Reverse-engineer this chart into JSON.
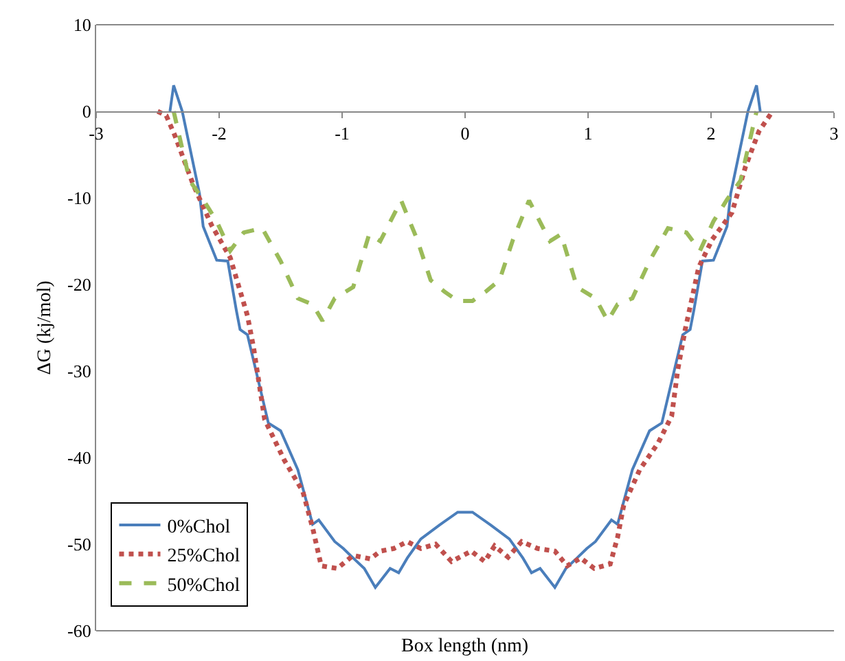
{
  "chart_data": {
    "type": "line",
    "xlabel": "Box length (nm)",
    "ylabel": "ΔG (kj/mol)",
    "xlim": [
      -3,
      3
    ],
    "ylim": [
      -60,
      10
    ],
    "xticks": [
      -3,
      -2,
      -1,
      0,
      1,
      2,
      3
    ],
    "yticks": [
      -60,
      -50,
      -40,
      -30,
      -20,
      -10,
      0,
      10
    ],
    "grid": false,
    "legend": "bottom left",
    "marker": "none",
    "series": [
      {
        "name": "0%Chol",
        "color": "#4a7ebb",
        "line_style": "solid",
        "x": [
          -2.4,
          -2.37,
          -2.3,
          -2.16,
          -2.13,
          -2.02,
          -1.93,
          -1.86,
          -1.83,
          -1.77,
          -1.6,
          -1.5,
          -1.36,
          -1.24,
          -1.19,
          -1.06,
          -0.99,
          -0.91,
          -0.82,
          -0.73,
          -0.61,
          -0.54,
          -0.47,
          -0.36,
          -0.21,
          -0.06,
          0.06,
          0.21,
          0.36,
          0.47,
          0.54,
          0.61,
          0.73,
          0.82,
          0.91,
          0.99,
          1.06,
          1.19,
          1.24,
          1.36,
          1.5,
          1.6,
          1.77,
          1.83,
          1.86,
          1.93,
          2.02,
          2.13,
          2.16,
          2.3,
          2.37,
          2.4
        ],
        "values": [
          0,
          3,
          0,
          -9.5,
          -13.3,
          -17.2,
          -17.3,
          -23,
          -25.2,
          -25.8,
          -36,
          -36.9,
          -41.4,
          -47.7,
          -47.2,
          -49.7,
          -50.5,
          -51.6,
          -52.8,
          -55,
          -52.8,
          -53.3,
          -51.6,
          -49.4,
          -47.8,
          -46.3,
          -46.3,
          -47.8,
          -49.4,
          -51.6,
          -53.3,
          -52.8,
          -55,
          -52.8,
          -51.6,
          -50.5,
          -49.7,
          -47.2,
          -47.7,
          -41.4,
          -36.9,
          -36,
          -25.8,
          -25.2,
          -23,
          -17.3,
          -17.2,
          -13.3,
          -9.5,
          0,
          3,
          0
        ]
      },
      {
        "name": "25%Chol",
        "color": "#c0504d",
        "line_style": "dotted",
        "x": [
          -2.5,
          -2.43,
          -2.36,
          -2.21,
          -2.06,
          -1.91,
          -1.77,
          -1.72,
          -1.63,
          -1.47,
          -1.32,
          -1.24,
          -1.17,
          -1.04,
          -0.91,
          -0.77,
          -0.69,
          -0.58,
          -0.47,
          -0.36,
          -0.24,
          -0.11,
          0.05,
          0.16,
          0.24,
          0.35,
          0.46,
          0.59,
          0.73,
          0.83,
          0.94,
          1.05,
          1.18,
          1.24,
          1.29,
          1.42,
          1.57,
          1.68,
          1.73,
          1.79,
          1.9,
          2.01,
          2.17,
          2.28,
          2.39,
          2.5
        ],
        "values": [
          0,
          -0.5,
          -2.8,
          -8.5,
          -13.2,
          -16.9,
          -23.6,
          -27.3,
          -35.6,
          -40.3,
          -43.9,
          -48.1,
          -52.5,
          -52.8,
          -51.3,
          -51.7,
          -50.8,
          -50.5,
          -49.7,
          -50.5,
          -50,
          -52,
          -50.8,
          -52,
          -50.2,
          -51.5,
          -49.7,
          -50.5,
          -50.8,
          -52.5,
          -51.6,
          -52.8,
          -52.3,
          -49.2,
          -45.5,
          -41.4,
          -38.3,
          -35.2,
          -29.8,
          -25.2,
          -18,
          -14.8,
          -11.7,
          -6.4,
          -2.3,
          0
        ]
      },
      {
        "name": "50%Chol",
        "color": "#9bbb59",
        "line_style": "dashed",
        "x": [
          -2.37,
          -2.24,
          -2.13,
          -2.02,
          -1.91,
          -1.8,
          -1.65,
          -1.5,
          -1.36,
          -1.24,
          -1.16,
          -1.06,
          -0.91,
          -0.78,
          -0.69,
          -0.52,
          -0.39,
          -0.28,
          -0.17,
          -0.06,
          0.06,
          0.17,
          0.28,
          0.39,
          0.52,
          0.69,
          0.78,
          0.91,
          1.06,
          1.16,
          1.24,
          1.36,
          1.5,
          1.65,
          1.8,
          1.91,
          2.02,
          2.13,
          2.24,
          2.37
        ],
        "values": [
          0,
          -8,
          -10.2,
          -12.7,
          -16.1,
          -14,
          -13.5,
          -17.3,
          -21.6,
          -22.3,
          -24.2,
          -21.6,
          -20.3,
          -14.2,
          -15,
          -10.3,
          -14.8,
          -19.5,
          -20.8,
          -21.9,
          -21.9,
          -20.8,
          -19.5,
          -14.8,
          -10.3,
          -15,
          -14.2,
          -20.3,
          -21.6,
          -24.2,
          -22.3,
          -21.6,
          -17.3,
          -13.5,
          -14,
          -16.1,
          -12.7,
          -10.2,
          -8,
          0
        ]
      }
    ]
  }
}
